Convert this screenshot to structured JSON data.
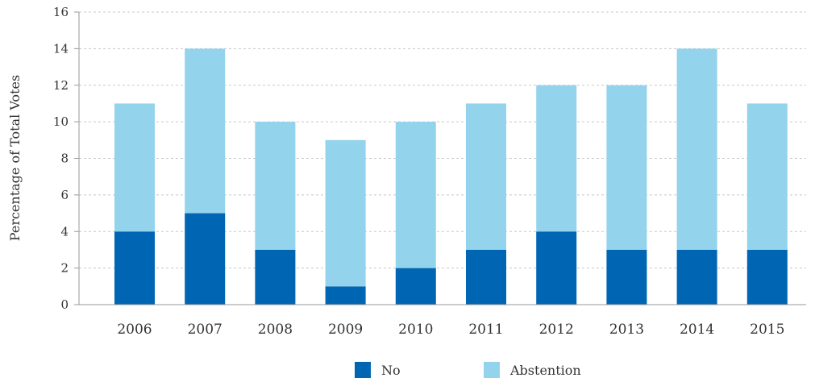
{
  "chart_data": {
    "type": "bar",
    "stacked": true,
    "title": "",
    "xlabel": "",
    "ylabel": "Percentage of Total Votes",
    "ylim": [
      0,
      16
    ],
    "yticks": [
      0,
      2,
      4,
      6,
      8,
      10,
      12,
      14,
      16
    ],
    "grid": true,
    "legend_position": "bottom-center",
    "categories": [
      "2006",
      "2007",
      "2008",
      "2009",
      "2010",
      "2011",
      "2012",
      "2013",
      "2014",
      "2015"
    ],
    "series": [
      {
        "name": "No",
        "color": "#0066b3",
        "values": [
          4,
          5,
          3,
          1,
          2,
          3,
          4,
          3,
          3,
          3
        ]
      },
      {
        "name": "Abstention",
        "color": "#93d3ec",
        "values": [
          7,
          9,
          7,
          8,
          8,
          8,
          8,
          9,
          11,
          8
        ]
      }
    ]
  }
}
